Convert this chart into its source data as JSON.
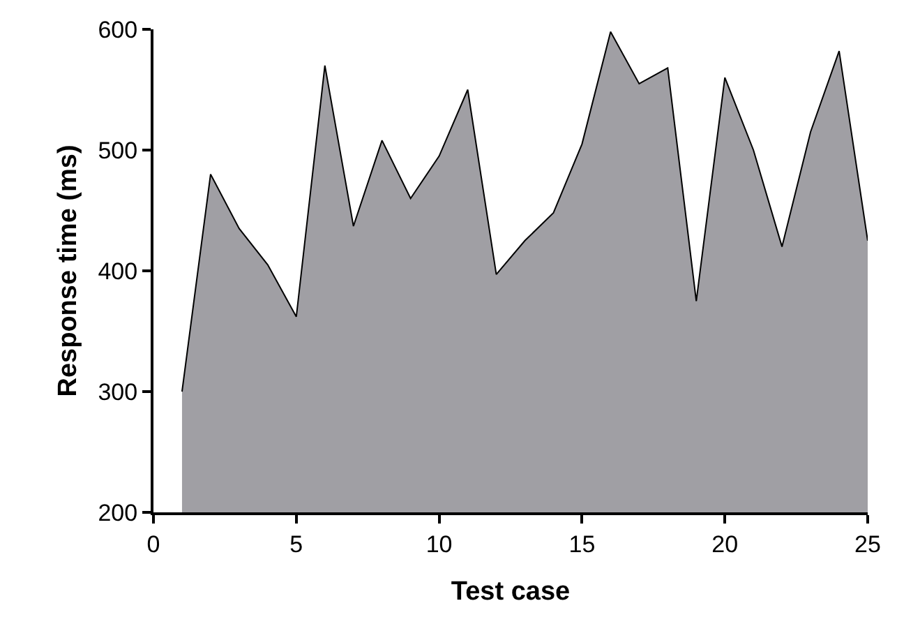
{
  "chart_data": {
    "type": "area",
    "xlabel": "Test case",
    "ylabel": "Response time (ms)",
    "x": [
      1,
      2,
      3,
      4,
      5,
      6,
      7,
      8,
      9,
      10,
      11,
      12,
      13,
      14,
      15,
      16,
      17,
      18,
      19,
      20,
      21,
      22,
      23,
      24,
      25
    ],
    "series": [
      {
        "color": "#a09fa4",
        "values": [
          300,
          480,
          435,
          405,
          362,
          570,
          437,
          508,
          460,
          495,
          550,
          397,
          425,
          448,
          505,
          598,
          555,
          568,
          375,
          560,
          500,
          420,
          515,
          582,
          425
        ]
      }
    ],
    "xlim": [
      0,
      25
    ],
    "xticks": [
      0,
      5,
      10,
      15,
      20,
      25
    ],
    "ylim": [
      200,
      600
    ],
    "yticks": [
      200,
      300,
      400,
      500,
      600
    ],
    "grid": false
  }
}
